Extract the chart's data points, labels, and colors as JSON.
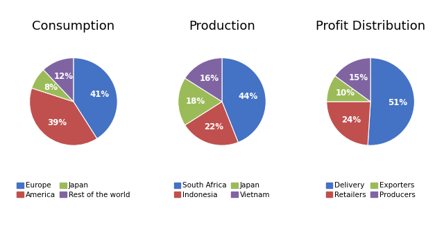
{
  "charts": [
    {
      "title": "Consumption",
      "labels": [
        "Europe",
        "America",
        "Japan",
        "Rest of the world"
      ],
      "values": [
        41,
        39,
        8,
        12
      ],
      "colors": [
        "#4472C4",
        "#C0504D",
        "#9BBB59",
        "#8064A2"
      ],
      "pct_labels": [
        "41%",
        "39%",
        "8%",
        "12%"
      ],
      "startangle": 90,
      "legend_row1": [
        "Europe",
        "America"
      ],
      "legend_row2": [
        "Japan",
        "Rest of the world"
      ]
    },
    {
      "title": "Production",
      "labels": [
        "South Africa",
        "Indonesia",
        "Japan",
        "Vietnam"
      ],
      "values": [
        44,
        22,
        18,
        16
      ],
      "colors": [
        "#4472C4",
        "#C0504D",
        "#9BBB59",
        "#8064A2"
      ],
      "pct_labels": [
        "44%",
        "22%",
        "18%",
        "16%"
      ],
      "startangle": 90,
      "legend_row1": [
        "South Africa",
        "Indonesia"
      ],
      "legend_row2": [
        "Japan",
        "Vietnam"
      ]
    },
    {
      "title": "Profit Distribution",
      "labels": [
        "Delivery",
        "Retailers",
        "Exporters",
        "Producers"
      ],
      "values": [
        51,
        24,
        10,
        15
      ],
      "colors": [
        "#4472C4",
        "#C0504D",
        "#9BBB59",
        "#8064A2"
      ],
      "pct_labels": [
        "51%",
        "24%",
        "10%",
        "15%"
      ],
      "startangle": 90,
      "legend_row1": [
        "Delivery",
        "Retailers"
      ],
      "legend_row2": [
        "Exporters",
        "Producers"
      ]
    }
  ],
  "background_color": "#FFFFFF",
  "title_fontsize": 13,
  "label_fontsize": 8.5,
  "legend_fontsize": 7.5
}
